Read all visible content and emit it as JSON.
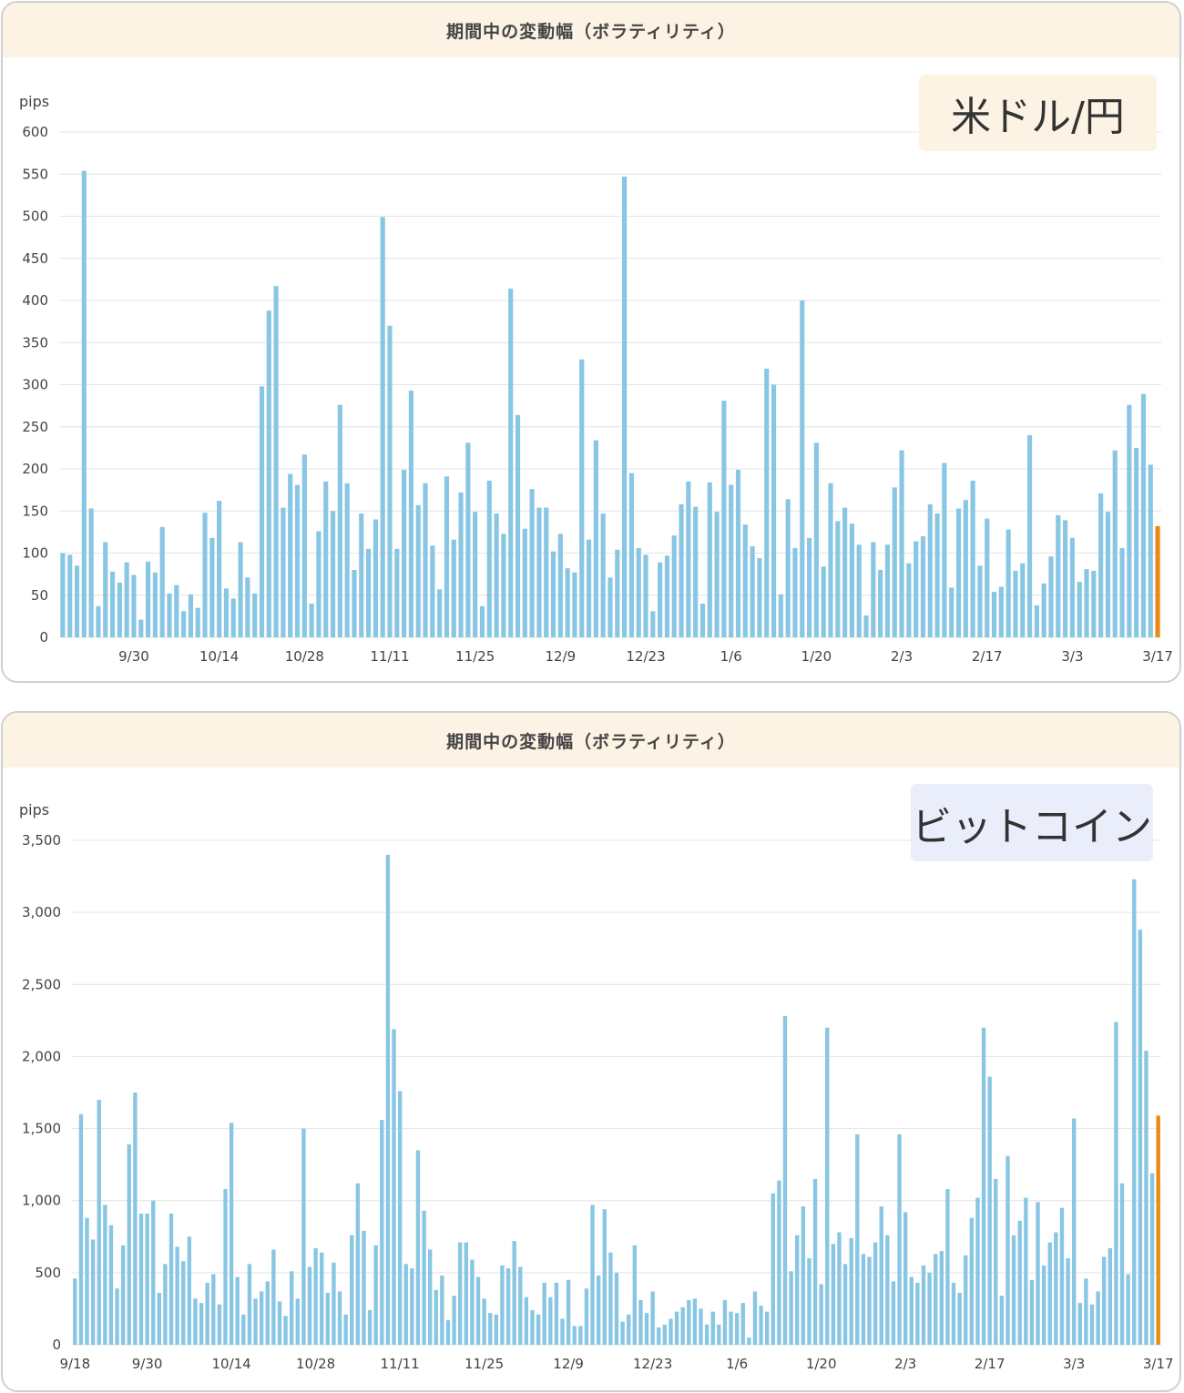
{
  "panels": [
    {
      "header_title": "期間中の変動幅（ボラティリティ）",
      "badge_label": "米ドル/円",
      "unit": "pips"
    },
    {
      "header_title": "期間中の変動幅（ボラティリティ）",
      "badge_label": "ビットコイン",
      "unit": "pips"
    }
  ],
  "colors": {
    "bar": "#88c6e3",
    "highlight_bar": "#ea8a12",
    "header_bg": "#fdf3e4",
    "grid": "#e4e4e4"
  },
  "chart_data": [
    {
      "type": "bar",
      "title": "米ドル/円",
      "ylabel": "pips",
      "ylim": [
        0,
        600
      ],
      "yticks": [
        0,
        50,
        100,
        150,
        200,
        250,
        300,
        350,
        400,
        450,
        500,
        550,
        600
      ],
      "ytick_labels": [
        "0",
        "50",
        "100",
        "150",
        "200",
        "250",
        "300",
        "350",
        "400",
        "450",
        "500",
        "550",
        "600"
      ],
      "xtick_labels": [
        "9/30",
        "10/14",
        "10/28",
        "11/11",
        "11/25",
        "12/9",
        "12/23",
        "1/6",
        "1/20",
        "2/3",
        "2/17",
        "3/3",
        "3/17"
      ],
      "xtick_bar_index": [
        10,
        22,
        34,
        46,
        58,
        70,
        82,
        94,
        106,
        118,
        130,
        142,
        154
      ],
      "highlight_last": true,
      "values": [
        100,
        98,
        85,
        554,
        153,
        37,
        113,
        78,
        65,
        89,
        74,
        21,
        90,
        77,
        131,
        52,
        62,
        31,
        51,
        35,
        148,
        118,
        162,
        58,
        46,
        113,
        71,
        52,
        298,
        388,
        417,
        154,
        194,
        181,
        217,
        40,
        126,
        185,
        150,
        276,
        183,
        80,
        147,
        105,
        140,
        499,
        370,
        105,
        199,
        293,
        157,
        183,
        109,
        57,
        191,
        116,
        172,
        231,
        149,
        37,
        186,
        147,
        123,
        414,
        264,
        129,
        176,
        154,
        154,
        102,
        123,
        82,
        77,
        330,
        116,
        234,
        147,
        71,
        104,
        547,
        195,
        106,
        98,
        31,
        89,
        97,
        121,
        158,
        185,
        155,
        40,
        184,
        149,
        281,
        181,
        199,
        134,
        108,
        94,
        319,
        300,
        51,
        164,
        106,
        400,
        118,
        231,
        84,
        183,
        138,
        154,
        135,
        110,
        26,
        113,
        80,
        110,
        178,
        222,
        88,
        114,
        120,
        158,
        147,
        207,
        59,
        153,
        163,
        186,
        85,
        141,
        54,
        60,
        128,
        79,
        88,
        240,
        38,
        64,
        96,
        145,
        139,
        118,
        66,
        81,
        79,
        171,
        149,
        222,
        106,
        276,
        225,
        289,
        205,
        132
      ]
    },
    {
      "type": "bar",
      "title": "ビットコイン",
      "ylabel": "pips",
      "ylim": [
        0,
        3500
      ],
      "yticks": [
        0,
        500,
        1000,
        1500,
        2000,
        2500,
        3000,
        3500
      ],
      "ytick_labels": [
        "0",
        "500",
        "1,000",
        "1,500",
        "2,000",
        "2,500",
        "3,000",
        "3,500"
      ],
      "xtick_labels": [
        "9/18",
        "9/30",
        "10/14",
        "10/28",
        "11/11",
        "11/25",
        "12/9",
        "12/23",
        "1/6",
        "1/20",
        "2/3",
        "2/17",
        "3/3",
        "3/17"
      ],
      "xtick_bar_index": [
        0,
        12,
        26,
        40,
        54,
        68,
        82,
        96,
        110,
        124,
        138,
        152,
        166,
        180
      ],
      "highlight_last": true,
      "values": [
        460,
        1600,
        880,
        730,
        1700,
        970,
        830,
        390,
        690,
        1390,
        1750,
        910,
        910,
        1000,
        360,
        560,
        910,
        680,
        580,
        750,
        320,
        290,
        430,
        490,
        280,
        1080,
        1540,
        470,
        210,
        560,
        320,
        370,
        440,
        660,
        300,
        200,
        510,
        320,
        1500,
        540,
        670,
        640,
        360,
        570,
        370,
        210,
        760,
        1120,
        790,
        240,
        690,
        1560,
        3400,
        2190,
        1760,
        560,
        530,
        1350,
        930,
        660,
        380,
        480,
        170,
        340,
        710,
        710,
        590,
        470,
        320,
        220,
        210,
        550,
        530,
        720,
        540,
        330,
        240,
        210,
        430,
        330,
        430,
        180,
        450,
        130,
        130,
        390,
        970,
        480,
        940,
        640,
        500,
        160,
        210,
        690,
        310,
        220,
        370,
        120,
        140,
        180,
        230,
        260,
        310,
        320,
        250,
        140,
        230,
        140,
        310,
        230,
        220,
        290,
        50,
        370,
        270,
        230,
        1050,
        1140,
        2280,
        510,
        760,
        960,
        600,
        1150,
        420,
        2200,
        700,
        780,
        560,
        740,
        1460,
        630,
        610,
        710,
        960,
        760,
        440,
        1460,
        920,
        470,
        430,
        550,
        500,
        630,
        650,
        1080,
        430,
        360,
        620,
        880,
        1020,
        2200,
        1860,
        1150,
        340,
        1310,
        760,
        860,
        1020,
        450,
        990,
        550,
        710,
        780,
        950,
        600,
        1570,
        290,
        460,
        280,
        370,
        610,
        670,
        2240,
        1120,
        490,
        3230,
        2880,
        2040,
        1190,
        1590
      ]
    }
  ]
}
